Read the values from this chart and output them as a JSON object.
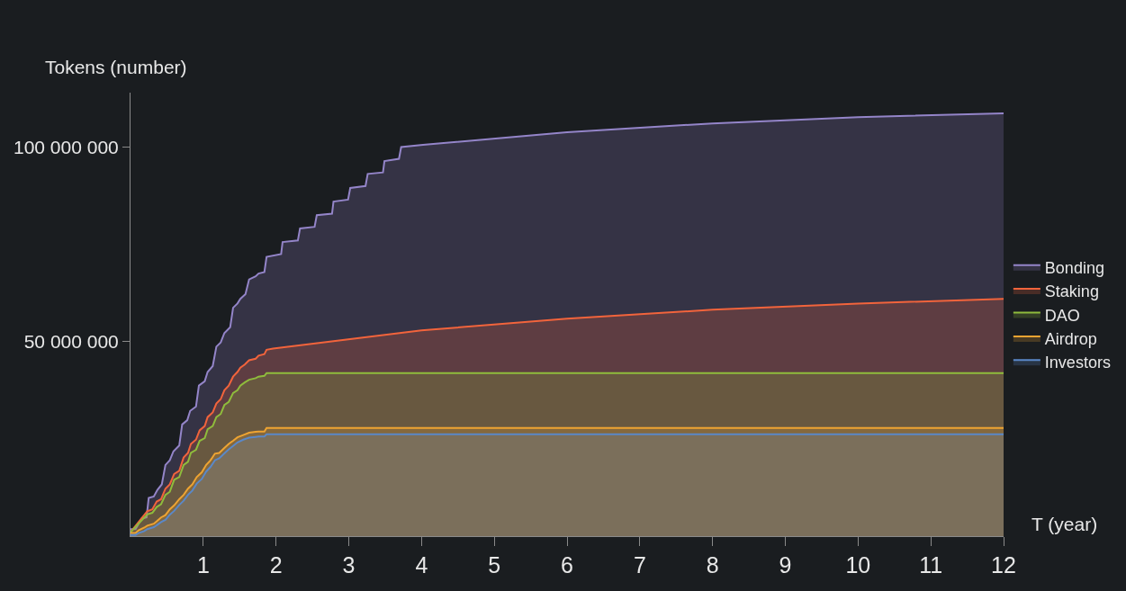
{
  "chart_data": {
    "type": "area",
    "xlabel": "T (year)",
    "ylabel": "Tokens (number)",
    "xlim": [
      0,
      12
    ],
    "ylim": [
      0,
      114000000
    ],
    "xticks": [
      1,
      2,
      3,
      4,
      5,
      6,
      7,
      8,
      9,
      10,
      11,
      12
    ],
    "yticks": [
      {
        "value": 50000000,
        "label": "50 000 000"
      },
      {
        "value": 100000000,
        "label": "100 000 000"
      }
    ],
    "grid": false,
    "legend": "right",
    "marker": "none",
    "line_style": "solid",
    "series": [
      {
        "name": "Bonding",
        "color": "#9485c9",
        "x": [
          0,
          0.07,
          0.15,
          0.22,
          0.25,
          0.32,
          0.37,
          0.43,
          0.48,
          0.54,
          0.59,
          0.67,
          0.71,
          0.78,
          0.82,
          0.9,
          0.94,
          1.02,
          1.06,
          1.13,
          1.18,
          1.24,
          1.29,
          1.37,
          1.41,
          1.47,
          1.51,
          1.58,
          1.63,
          1.72,
          1.76,
          1.84,
          1.87,
          2.07,
          2.09,
          2.3,
          2.33,
          2.53,
          2.56,
          2.77,
          2.79,
          2.99,
          3.02,
          3.23,
          3.26,
          3.47,
          3.49,
          3.69,
          3.72,
          4.02,
          6,
          8,
          10,
          12
        ],
        "values": [
          1800000,
          1800000,
          4500000,
          4800000,
          9800000,
          10200000,
          11900000,
          13300000,
          18300000,
          19500000,
          21800000,
          23300000,
          28700000,
          29800000,
          32200000,
          33300000,
          38700000,
          39800000,
          42200000,
          43700000,
          48700000,
          49800000,
          52200000,
          53700000,
          58700000,
          59800000,
          61000000,
          62200000,
          66000000,
          66800000,
          67500000,
          67900000,
          71800000,
          72500000,
          75600000,
          76000000,
          79100000,
          79500000,
          82500000,
          82900000,
          86000000,
          86500000,
          89500000,
          90000000,
          93100000,
          93500000,
          96400000,
          97000000,
          100000000,
          100600000,
          103800000,
          106100000,
          107700000,
          108700000
        ]
      },
      {
        "name": "Staking",
        "color": "#f2643c",
        "x": [
          0,
          0.23,
          0.3,
          0.36,
          0.42,
          0.48,
          0.54,
          0.6,
          0.67,
          0.73,
          0.79,
          0.83,
          0.9,
          0.95,
          1.02,
          1.06,
          1.13,
          1.18,
          1.24,
          1.29,
          1.35,
          1.41,
          1.47,
          1.51,
          1.57,
          1.63,
          1.72,
          1.76,
          1.84,
          1.87,
          1.96,
          4,
          6,
          8,
          10,
          12
        ],
        "values": [
          1000000,
          6400000,
          6900000,
          8900000,
          9500000,
          12200000,
          13300000,
          16000000,
          16800000,
          20200000,
          21400000,
          23700000,
          24800000,
          27200000,
          28300000,
          30600000,
          31800000,
          34100000,
          35200000,
          37500000,
          38700000,
          41000000,
          42200000,
          43300000,
          44100000,
          45200000,
          45600000,
          46400000,
          46800000,
          47900000,
          48200000,
          52900000,
          55900000,
          58200000,
          59800000,
          61000000
        ]
      },
      {
        "name": "DAO",
        "color": "#8fbc3c",
        "x": [
          0,
          0.23,
          0.3,
          0.36,
          0.42,
          0.48,
          0.54,
          0.6,
          0.67,
          0.73,
          0.79,
          0.83,
          0.9,
          0.95,
          1.02,
          1.06,
          1.13,
          1.18,
          1.24,
          1.29,
          1.35,
          1.41,
          1.47,
          1.51,
          1.57,
          1.63,
          1.72,
          1.76,
          1.84,
          1.87,
          12
        ],
        "values": [
          1000000,
          5600000,
          6000000,
          7500000,
          8200000,
          10600000,
          11400000,
          14500000,
          15200000,
          18300000,
          19100000,
          21400000,
          22200000,
          24500000,
          25200000,
          27500000,
          28300000,
          30600000,
          31400000,
          33700000,
          34500000,
          36800000,
          37500000,
          38700000,
          39500000,
          40200000,
          40600000,
          41000000,
          41200000,
          41900000,
          41900000
        ]
      },
      {
        "name": "Airdrop",
        "color": "#eea432",
        "x": [
          0,
          0.07,
          0.11,
          0.19,
          0.23,
          0.32,
          0.36,
          0.42,
          0.48,
          0.54,
          0.6,
          0.67,
          0.73,
          0.79,
          0.85,
          0.91,
          0.98,
          1.04,
          1.1,
          1.16,
          1.22,
          1.28,
          1.35,
          1.41,
          1.47,
          1.55,
          1.63,
          1.72,
          1.76,
          1.84,
          1.87,
          12
        ],
        "values": [
          800000,
          800000,
          1500000,
          2200000,
          2700000,
          3200000,
          3800000,
          4800000,
          5400000,
          6900000,
          7900000,
          9500000,
          10600000,
          12200000,
          13300000,
          15200000,
          16400000,
          18300000,
          19500000,
          21200000,
          21400000,
          22500000,
          23700000,
          24500000,
          25400000,
          26000000,
          26600000,
          26800000,
          26900000,
          26900000,
          27800000,
          27800000
        ]
      },
      {
        "name": "Investors",
        "color": "#5a88c8",
        "x": [
          0,
          0.07,
          0.11,
          0.19,
          0.23,
          0.32,
          0.36,
          0.42,
          0.48,
          0.54,
          0.6,
          0.67,
          0.73,
          0.79,
          0.85,
          0.91,
          0.98,
          1.04,
          1.1,
          1.16,
          1.22,
          1.28,
          1.35,
          1.41,
          1.47,
          1.55,
          1.63,
          1.72,
          1.76,
          1.84,
          1.87,
          12
        ],
        "values": [
          300000,
          300000,
          800000,
          1300000,
          1800000,
          2300000,
          2800000,
          3600000,
          4200000,
          5500000,
          6500000,
          8000000,
          9100000,
          10600000,
          11700000,
          13500000,
          14700000,
          16600000,
          17800000,
          19500000,
          20000000,
          21100000,
          22300000,
          23200000,
          24100000,
          24800000,
          25300000,
          25500000,
          25600000,
          25600000,
          26200000,
          26200000
        ]
      }
    ]
  }
}
